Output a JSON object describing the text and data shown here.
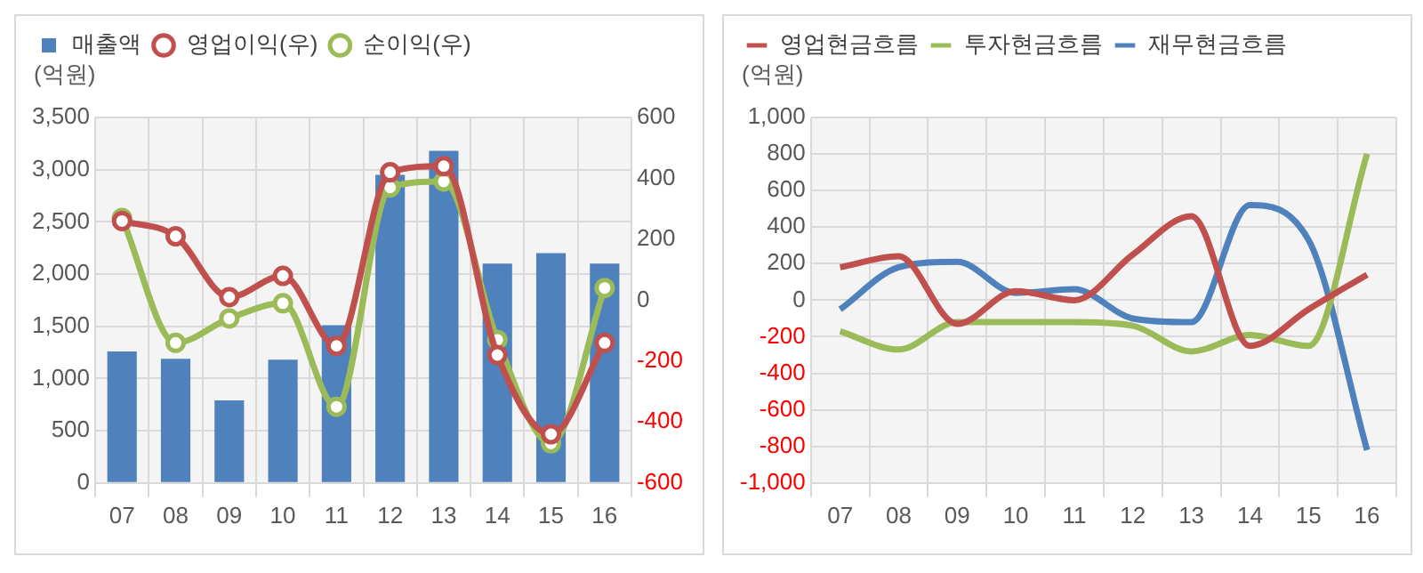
{
  "chart_data": [
    {
      "type": "bar",
      "ylabel": "(억원)",
      "categories": [
        "07",
        "08",
        "09",
        "10",
        "11",
        "12",
        "13",
        "14",
        "15",
        "16"
      ],
      "ylim": [
        0,
        3500
      ],
      "yticks": [
        0,
        500,
        {
          "value": 1000,
          "label": "1,000"
        },
        {
          "value": 1500,
          "label": "1,500"
        },
        {
          "value": 2000,
          "label": "2,000"
        },
        {
          "value": 2500,
          "label": "2,500"
        },
        {
          "value": 3000,
          "label": "3,000"
        },
        {
          "value": 3500,
          "label": "3,500"
        }
      ],
      "y2lim": [
        -600,
        600
      ],
      "y2ticks": [
        -600,
        -400,
        -200,
        0,
        200,
        400,
        600
      ],
      "grid": true,
      "legend": "top left",
      "marker": "circle",
      "series": [
        {
          "name": "매출액",
          "type": "bar",
          "color": "#4f81bd",
          "values": [
            1260,
            1190,
            790,
            1180,
            1510,
            2950,
            3180,
            2100,
            2200,
            2100
          ]
        },
        {
          "name": "영업이익(우)",
          "type": "line",
          "axis": "y2",
          "color": "#c0504d",
          "values": [
            260,
            210,
            10,
            80,
            -150,
            420,
            440,
            -180,
            -440,
            -140
          ]
        },
        {
          "name": "순이익(우)",
          "type": "line",
          "axis": "y2",
          "color": "#9bbb59",
          "values": [
            270,
            -140,
            -60,
            -10,
            -350,
            370,
            390,
            -130,
            -470,
            40
          ]
        }
      ]
    },
    {
      "type": "line",
      "ylabel": "(억원)",
      "categories": [
        "07",
        "08",
        "09",
        "10",
        "11",
        "12",
        "13",
        "14",
        "15",
        "16"
      ],
      "ylim": [
        -1000,
        1000
      ],
      "yticks": [
        {
          "value": -1000,
          "label": "-1,000"
        },
        -800,
        -600,
        -400,
        -200,
        0,
        200,
        400,
        600,
        800,
        {
          "value": 1000,
          "label": "1,000"
        }
      ],
      "grid": true,
      "legend": "top left",
      "series": [
        {
          "name": "영업현금흐름",
          "color": "#c0504d",
          "values": [
            180,
            240,
            -130,
            50,
            0,
            250,
            460,
            -250,
            -50,
            140
          ]
        },
        {
          "name": "투자현금흐름",
          "color": "#9bbb59",
          "values": [
            -170,
            -270,
            -120,
            -120,
            -120,
            -140,
            -280,
            -190,
            -250,
            800
          ]
        },
        {
          "name": "재무현금흐름",
          "color": "#4f81bd",
          "values": [
            -50,
            180,
            210,
            40,
            60,
            -100,
            -120,
            520,
            330,
            -820
          ]
        }
      ]
    }
  ]
}
